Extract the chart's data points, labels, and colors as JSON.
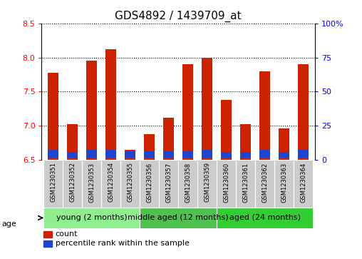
{
  "title": "GDS4892 / 1439709_at",
  "samples": [
    "GSM1230351",
    "GSM1230352",
    "GSM1230353",
    "GSM1230354",
    "GSM1230355",
    "GSM1230356",
    "GSM1230357",
    "GSM1230358",
    "GSM1230359",
    "GSM1230360",
    "GSM1230361",
    "GSM1230362",
    "GSM1230363",
    "GSM1230364"
  ],
  "count_values": [
    7.78,
    7.02,
    7.95,
    8.12,
    6.65,
    6.88,
    7.12,
    7.9,
    8.0,
    7.38,
    7.02,
    7.8,
    6.96,
    7.9
  ],
  "percentile_values": [
    0.12,
    0.09,
    0.12,
    0.12,
    0.1,
    0.1,
    0.1,
    0.1,
    0.12,
    0.09,
    0.09,
    0.12,
    0.09,
    0.12
  ],
  "base_value": 6.5,
  "ylim_left": [
    6.5,
    8.5
  ],
  "ylim_right": [
    0,
    100
  ],
  "yticks_left": [
    6.5,
    7.0,
    7.5,
    8.0,
    8.5
  ],
  "yticks_right": [
    0,
    25,
    50,
    75,
    100
  ],
  "ytick_labels_right": [
    "0",
    "25",
    "50",
    "75",
    "100%"
  ],
  "groups": [
    {
      "label": "young (2 months)",
      "start": 0,
      "end": 4,
      "color": "#90EE90"
    },
    {
      "label": "middle aged (12 months)",
      "start": 5,
      "end": 8,
      "color": "#50C050"
    },
    {
      "label": "aged (24 months)",
      "start": 9,
      "end": 13,
      "color": "#32CD32"
    }
  ],
  "bar_color_red": "#CC2200",
  "bar_color_blue": "#2244CC",
  "bar_width": 0.55,
  "bg_color": "#FFFFFF",
  "title_fontsize": 11,
  "age_label": "age",
  "legend_count": "count",
  "legend_percentile": "percentile rank within the sample",
  "sample_bg_color": "#CCCCCC",
  "group_label_fontsize": 8
}
